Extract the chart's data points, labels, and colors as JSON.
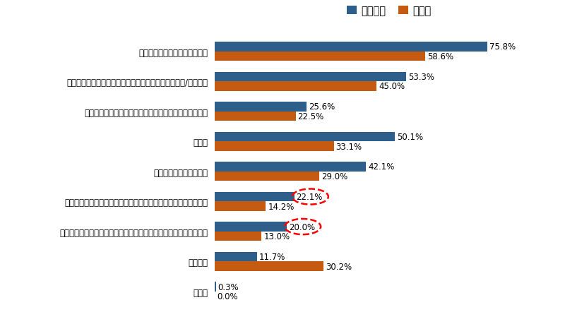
{
  "categories": [
    "貯蓄（預金・貯金・積み立て）",
    "投資・資産運用（株式・債券・投資信託・貯蓄型保険/年金等）",
    "不動産投資・経営（アパート・マンション・賃貸経営）",
    "退職金",
    "自宅・所有不動産の売却",
    "自宅等のリースバック（自宅等を売却し賃貸として住み続ける）",
    "リバースモーゲージ（自宅等を担保に借入、月々は利息払いのみ）",
    "特にない",
    "その他"
  ],
  "mochi_values": [
    75.8,
    53.3,
    25.6,
    50.1,
    42.1,
    22.1,
    20.0,
    11.7,
    0.3
  ],
  "chintai_values": [
    58.6,
    45.0,
    22.5,
    33.1,
    29.0,
    14.2,
    13.0,
    30.2,
    0.0
  ],
  "mochi_color": "#2e5f8a",
  "chintai_color": "#c55a11",
  "legend_mochi": "持ち家層",
  "legend_chintai": "賃貸層",
  "xlim": [
    0,
    88
  ],
  "bar_height": 0.32,
  "circle_indices": [
    5,
    6
  ],
  "background_color": "#ffffff",
  "label_fontsize": 8.5,
  "tick_fontsize": 8.5,
  "legend_fontsize": 10.5
}
